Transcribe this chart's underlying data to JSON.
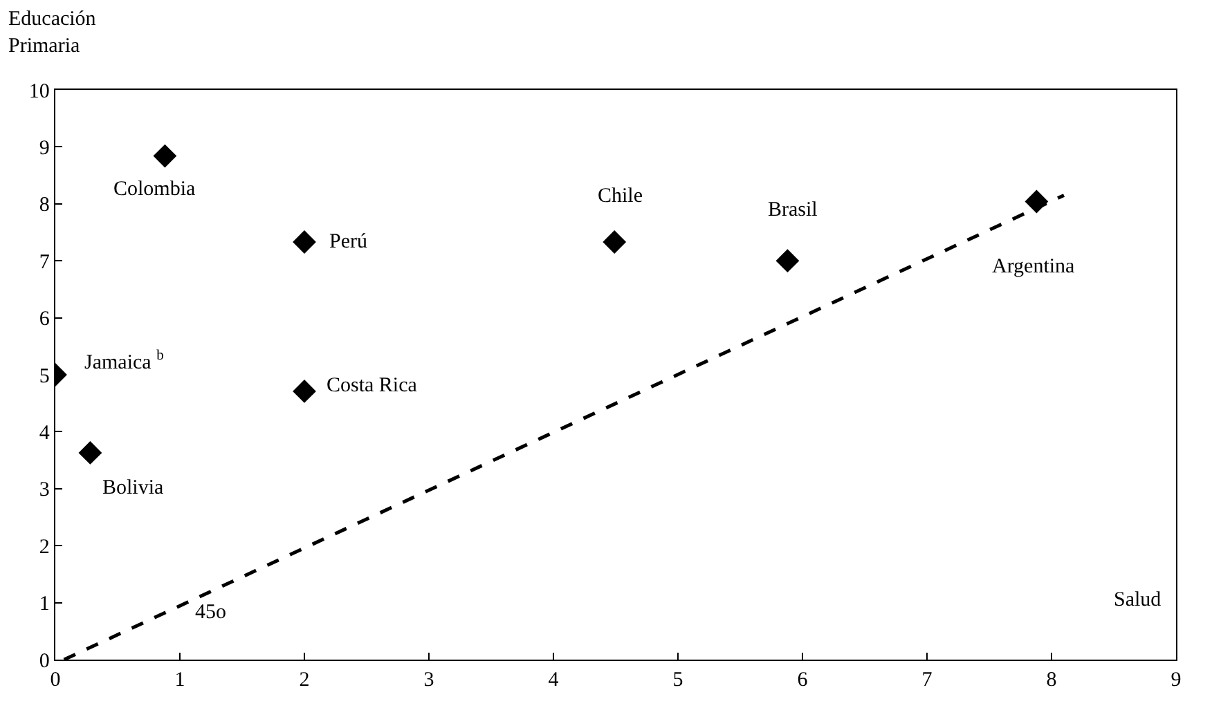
{
  "chart_data": {
    "type": "scatter",
    "xlabel": "Salud",
    "ylabel": "Educación\nPrimaria",
    "series": [
      {
        "color": "#000000",
        "marker": "diamond",
        "x": [
          0.88,
          2.0,
          0.0,
          2.0,
          0.28,
          4.49,
          5.88,
          7.88
        ],
        "values": [
          8.84,
          7.33,
          5.0,
          4.71,
          3.63,
          7.33,
          7.0,
          8.04
        ]
      },
      {
        "type": "line",
        "color": "#000000",
        "marker": "none",
        "line_style": "dashed",
        "x": [
          0.07,
          8.1
        ],
        "values": [
          0.0,
          8.15
        ]
      }
    ],
    "annotations": [
      {
        "text": "Colombia",
        "x": 0.88,
        "y": 8.84
      },
      {
        "text": "Perú",
        "x": 2.0,
        "y": 7.33
      },
      {
        "text": "Jamaica $^{b}$",
        "x": 0.0,
        "y": 5.0
      },
      {
        "text": "Costa Rica",
        "x": 2.0,
        "y": 4.71
      },
      {
        "text": "Bolivia",
        "x": 0.28,
        "y": 3.63
      },
      {
        "text": "45o",
        "x": 1.0,
        "y": 0.94
      },
      {
        "text": "Chile",
        "x": 4.49,
        "y": 7.33
      },
      {
        "text": "Brasil",
        "x": 5.88,
        "y": 7.0
      },
      {
        "text": "Argentina",
        "x": 7.88,
        "y": 8.04
      }
    ],
    "xlim": [
      0,
      9
    ],
    "xticks": [
      0,
      1,
      2,
      3,
      4,
      5,
      6,
      7,
      8,
      9
    ],
    "ylim": [
      0,
      10
    ],
    "yticks": [
      0,
      1,
      2,
      3,
      4,
      5,
      6,
      7,
      8,
      9,
      10
    ]
  }
}
